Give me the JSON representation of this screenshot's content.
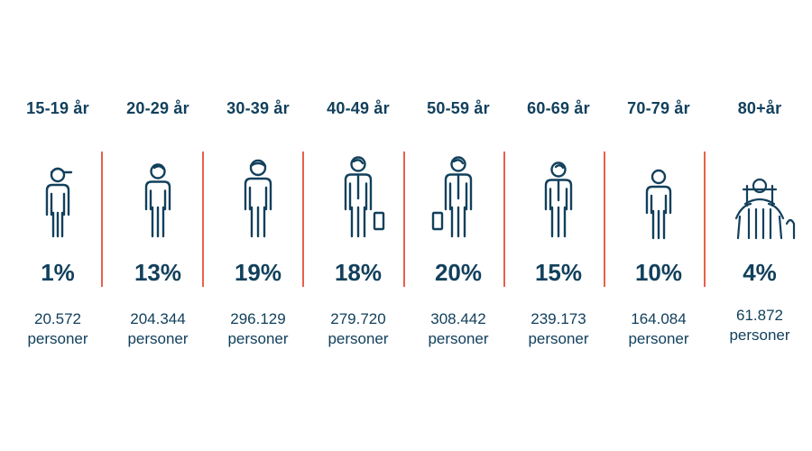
{
  "chart_data": {
    "type": "table",
    "categories": [
      "15-19 år",
      "20-29 år",
      "30-39 år",
      "40-49 år",
      "50-59 år",
      "60-69 år",
      "70-79 år",
      "80+år"
    ],
    "series": [
      {
        "values": [
          "1%",
          "13%",
          "19%",
          "18%",
          "20%",
          "15%",
          "10%",
          "4%"
        ]
      },
      {
        "values": [
          "20.572",
          "204.344",
          "296.129",
          "279.720",
          "308.442",
          "239.173",
          "164.084",
          "61.872"
        ]
      }
    ],
    "unit_label": "personer",
    "icons": [
      "teen-cap-icon",
      "young-adult-icon",
      "adult-cap-icon",
      "adult-briefcase-icon",
      "adult-briefcase-icon",
      "senior-icon",
      "elderly-icon",
      "walker-icon"
    ]
  },
  "colors": {
    "text": "#12405c",
    "divider": "#e8604c",
    "icon": "#12405c"
  }
}
